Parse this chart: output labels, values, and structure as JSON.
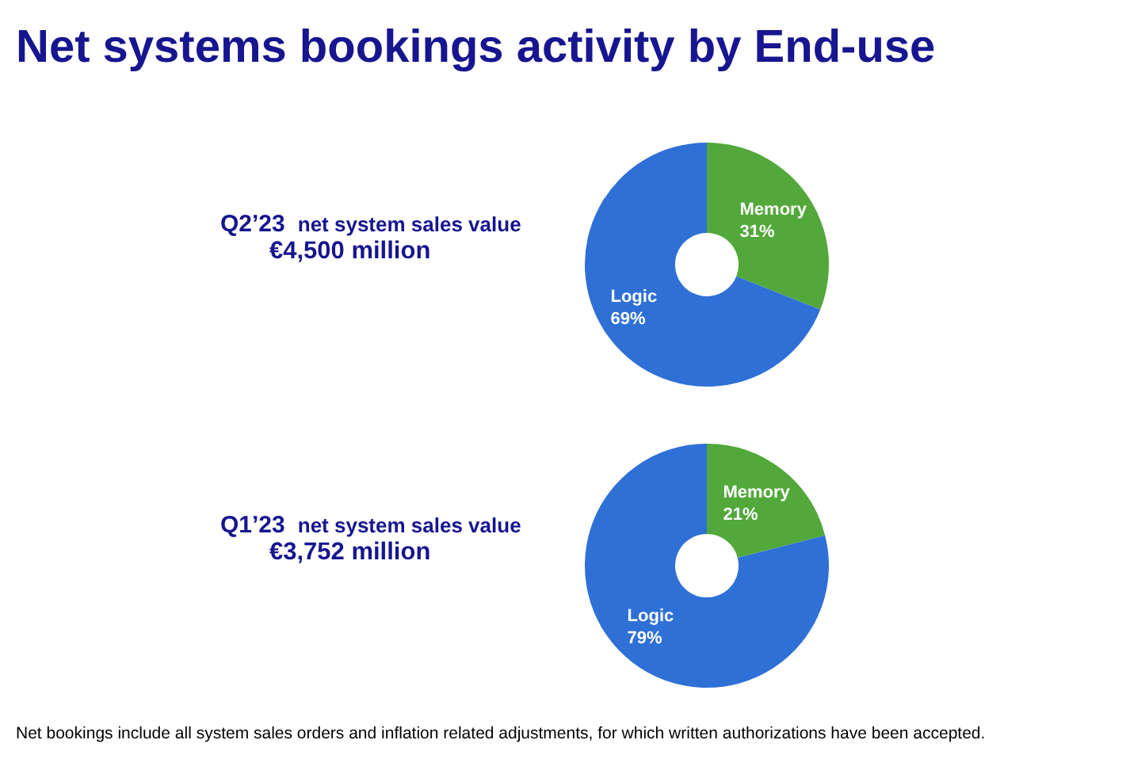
{
  "chart_data": [
    {
      "type": "other",
      "title": "Net systems bookings activity by End-use",
      "annotations": [
        "Net bookings include all system sales orders and inflation related adjustments, for which written authorizations have been accepted."
      ]
    },
    {
      "type": "donut",
      "title": "Q2’23",
      "subtitle": "net system sales value",
      "annotations": [
        "€4,500 million"
      ],
      "categories": [
        "Memory",
        "Logic"
      ],
      "values": [
        31,
        69
      ],
      "value_labels": [
        "31%",
        "69%"
      ],
      "colors": [
        "#52a83a",
        "#2f70d6"
      ]
    },
    {
      "type": "donut",
      "title": "Q1’23",
      "subtitle": "net system sales value",
      "annotations": [
        "€3,752 million"
      ],
      "categories": [
        "Memory",
        "Logic"
      ],
      "values": [
        21,
        79
      ],
      "value_labels": [
        "21%",
        "79%"
      ],
      "colors": [
        "#52a83a",
        "#2f70d6"
      ]
    }
  ]
}
